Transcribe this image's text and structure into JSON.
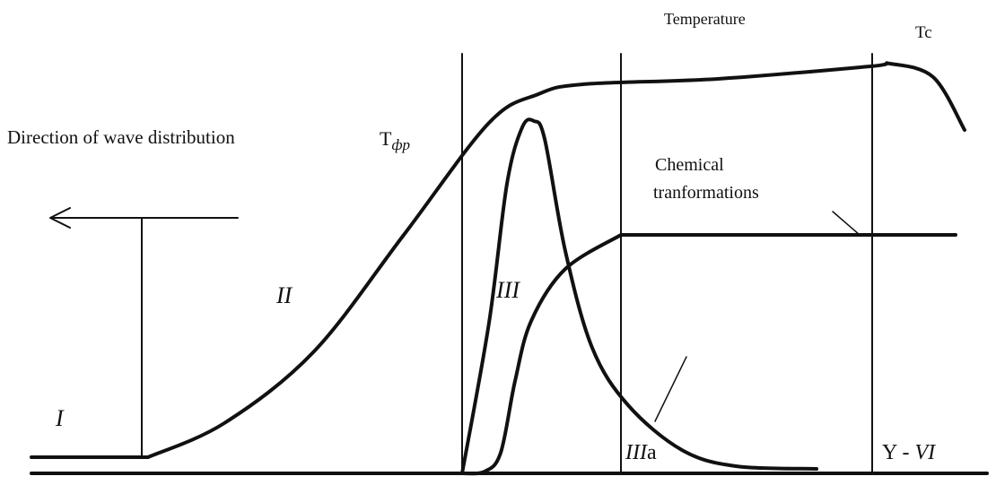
{
  "labels": {
    "temperature": "Temperature",
    "tc": "Tc",
    "direction": "Direction of wave distribution",
    "t_front": {
      "base": "T",
      "sub": "фр"
    },
    "chemical": [
      "Chemical",
      "tranformations"
    ],
    "zone_1": "I",
    "zone_2": "II",
    "zone_3": "III",
    "zone_3a": {
      "numeral": "III",
      "suffix": "a"
    },
    "zone_5_6": {
      "prefix": "Y - ",
      "numeral": "VI"
    }
  }
}
